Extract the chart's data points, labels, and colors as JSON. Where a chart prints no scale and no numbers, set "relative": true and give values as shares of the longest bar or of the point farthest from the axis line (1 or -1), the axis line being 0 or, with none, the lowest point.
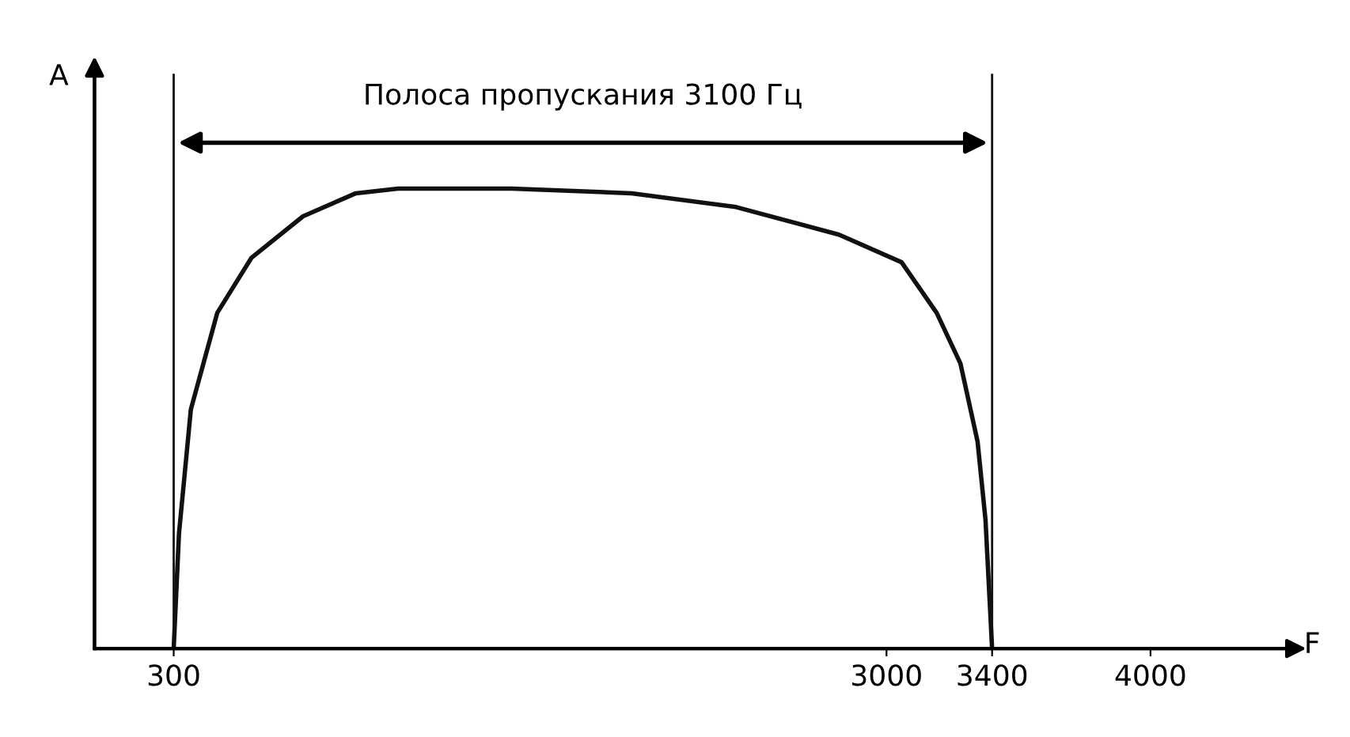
{
  "chart_data": {
    "type": "line",
    "relative": true,
    "xlabel": "F",
    "ylabel": "A",
    "annotations": [
      "Полоса пропускания 3100 Гц"
    ],
    "x": [
      300,
      320,
      365,
      465,
      595,
      790,
      990,
      1150,
      1580,
      2035,
      2430,
      2820,
      3057,
      3190,
      3280,
      3345,
      3375,
      3400
    ],
    "series": [
      {
        "color": "#111111",
        "values": [
          0,
          0.25,
          0.52,
          0.73,
          0.85,
          0.94,
          0.99,
          1.0,
          1.0,
          0.99,
          0.96,
          0.9,
          0.84,
          0.73,
          0.62,
          0.45,
          0.28,
          0
        ]
      }
    ],
    "xlim": [
      0,
      4500
    ],
    "xticks": [
      300,
      3000,
      3400,
      4000
    ],
    "tick_labels": "x",
    "grid": false,
    "legend": false,
    "marker": "none",
    "line_style": "solid",
    "ref_lines": [
      {
        "axis": "x",
        "value": 300,
        "color": "#111111"
      },
      {
        "axis": "x",
        "value": 3400,
        "color": "#111111"
      }
    ]
  }
}
